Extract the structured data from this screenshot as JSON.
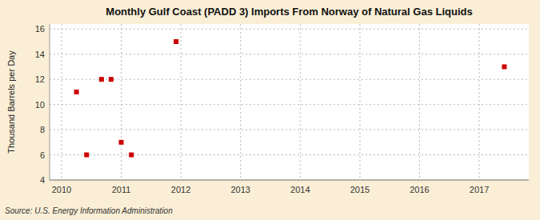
{
  "chart_data": {
    "type": "scatter",
    "title": "Monthly Gulf Coast (PADD 3) Imports From Norway of Natural Gas Liquids",
    "y_label": "Thousand Barrels per Day",
    "source": "Source: U.S. Energy Information Administration",
    "x": [
      2010.25,
      2010.42,
      2010.67,
      2010.83,
      2011.0,
      2011.17,
      2011.92,
      2017.42
    ],
    "values": [
      11,
      6,
      12,
      12,
      7,
      6,
      15,
      13
    ],
    "color": "#cc0000",
    "marker": "square",
    "xlim": [
      2009.8,
      2017.83
    ],
    "ylim": [
      4,
      16.4
    ],
    "xticks": [
      2010,
      2011,
      2012,
      2013,
      2014,
      2015,
      2016,
      2017
    ],
    "yticks": [
      4,
      6,
      8,
      10,
      12,
      14,
      16
    ],
    "grid": true
  }
}
